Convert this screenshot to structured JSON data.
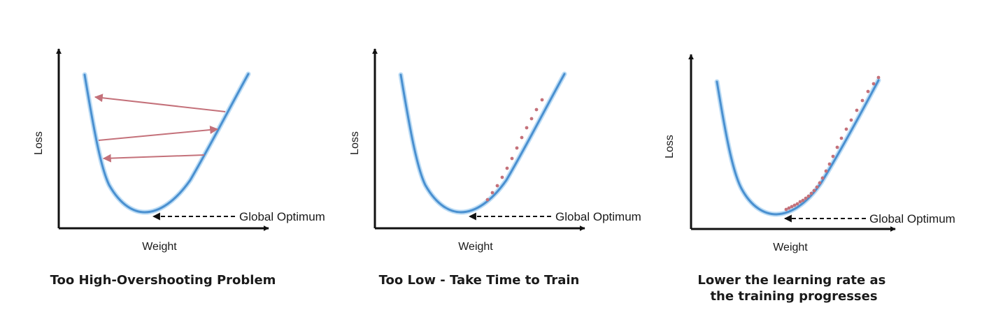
{
  "panels": [
    {
      "ylabel": "Loss",
      "xlabel": "Weight",
      "annotation": "Global Optimum",
      "caption_lines": [
        "Too High-Overshooting Problem"
      ]
    },
    {
      "ylabel": "Loss",
      "xlabel": "Weight",
      "annotation": "Global Optimum",
      "caption_lines": [
        "Too Low - Take Time to Train"
      ]
    },
    {
      "ylabel": "Loss",
      "xlabel": "Weight",
      "annotation": "Global Optimum",
      "caption_lines": [
        "Lower the learning rate as",
        "the training progresses"
      ]
    }
  ],
  "colors": {
    "curve": "#4a90d0",
    "curve_glow": "#bcdcf5",
    "steps": "#c4717a",
    "axis": "#111111",
    "text": "#1a1a1a"
  }
}
